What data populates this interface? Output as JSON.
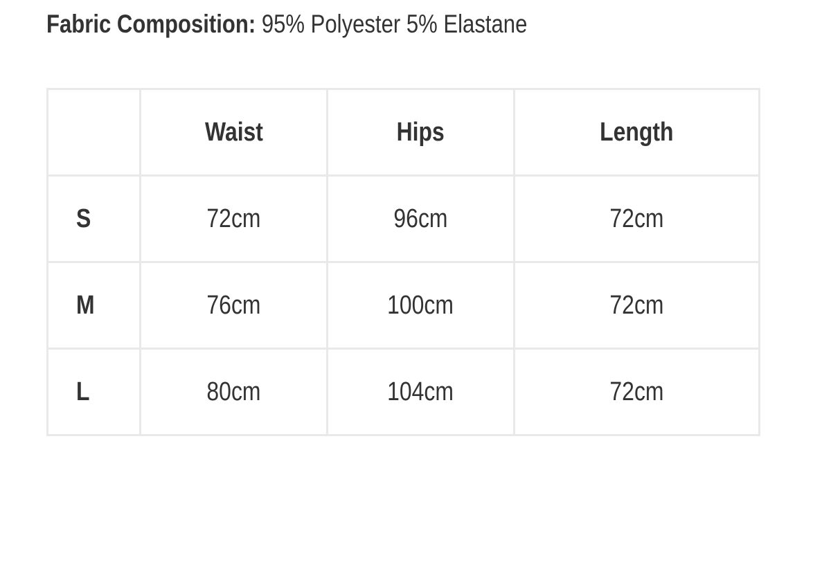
{
  "composition": {
    "label": "Fabric Composition:",
    "value": "95% Polyester 5% Elastane"
  },
  "table": {
    "headers": [
      "",
      "Waist",
      "Hips",
      "Length"
    ],
    "rows": [
      {
        "size": "S",
        "waist": "72cm",
        "hips": "96cm",
        "length": "72cm"
      },
      {
        "size": "M",
        "waist": "76cm",
        "hips": "100cm",
        "length": "72cm"
      },
      {
        "size": "L",
        "waist": "80cm",
        "hips": "104cm",
        "length": "72cm"
      }
    ]
  }
}
